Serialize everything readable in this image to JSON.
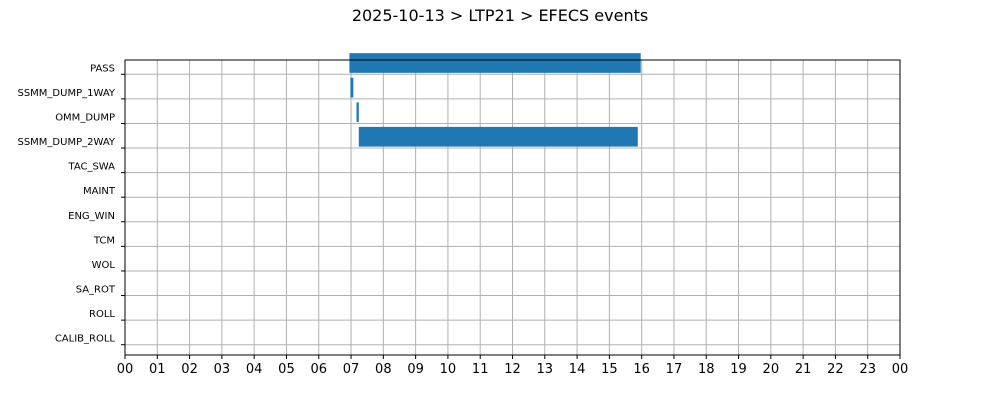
{
  "title": "2025-10-13 > LTP21 > EFECS events",
  "chart_data": {
    "type": "bar",
    "orientation": "horizontal",
    "title": "2025-10-13 > LTP21 > EFECS events",
    "xlabel": "",
    "ylabel": "",
    "categories": [
      "PASS",
      "SSMM_DUMP_1WAY",
      "OMM_DUMP",
      "SSMM_DUMP_2WAY",
      "TAC_SWA",
      "MAINT",
      "ENG_WIN",
      "TCM",
      "WOL",
      "SA_ROT",
      "ROLL",
      "CALIB_ROLL"
    ],
    "xlim": [
      0,
      24
    ],
    "x_tick_labels": [
      "00",
      "01",
      "02",
      "03",
      "04",
      "05",
      "06",
      "07",
      "08",
      "09",
      "10",
      "11",
      "12",
      "13",
      "14",
      "15",
      "16",
      "17",
      "18",
      "19",
      "20",
      "21",
      "22",
      "23",
      "00"
    ],
    "grid": true,
    "bar_color": "#1f77b4",
    "events": [
      {
        "category": "PASS",
        "start": 6.95,
        "end": 15.97
      },
      {
        "category": "SSMM_DUMP_1WAY",
        "start": 6.98,
        "end": 7.07
      },
      {
        "category": "OMM_DUMP",
        "start": 7.17,
        "end": 7.24
      },
      {
        "category": "SSMM_DUMP_2WAY",
        "start": 7.24,
        "end": 15.88
      }
    ]
  }
}
